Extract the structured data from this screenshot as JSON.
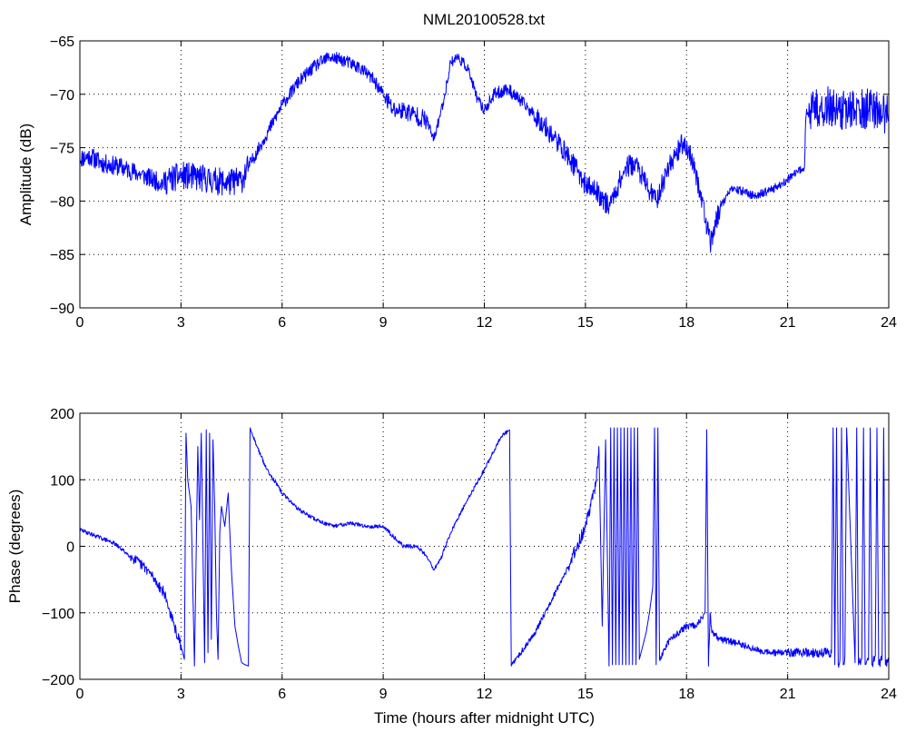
{
  "figure": {
    "title": "NML20100528.txt",
    "line_color": "#0000ff"
  },
  "chart_data": [
    {
      "type": "line",
      "title": "NML20100528.txt",
      "xlabel": "",
      "ylabel": "Amplitude (dB)",
      "xlim": [
        0,
        24
      ],
      "ylim": [
        -90,
        -65
      ],
      "xticks": [
        0,
        3,
        6,
        9,
        12,
        15,
        18,
        21,
        24
      ],
      "yticks": [
        -90,
        -85,
        -80,
        -75,
        -70,
        -65
      ],
      "grid": true,
      "noise": {
        "seed": 11,
        "segments": [
          [
            0,
            2.5,
            0.9
          ],
          [
            2.5,
            5.0,
            1.3
          ],
          [
            5.0,
            9.0,
            0.6
          ],
          [
            9.0,
            10.3,
            0.9
          ],
          [
            10.3,
            12.0,
            0.5
          ],
          [
            12.0,
            13.5,
            0.6
          ],
          [
            13.5,
            19.0,
            1.0
          ],
          [
            19.0,
            21.5,
            0.4
          ],
          [
            21.5,
            24.0,
            1.9
          ]
        ]
      },
      "series": [
        {
          "color": "#0000ff",
          "x": [
            0,
            0.3,
            0.7,
            1.2,
            1.8,
            2.4,
            3.0,
            3.5,
            4.0,
            4.4,
            4.8,
            5.0,
            5.5,
            6.0,
            6.5,
            7.0,
            7.4,
            7.8,
            8.3,
            8.7,
            9.0,
            9.3,
            9.6,
            10.0,
            10.3,
            10.5,
            10.8,
            11.0,
            11.2,
            11.5,
            11.8,
            12.0,
            12.3,
            12.7,
            13.2,
            13.8,
            14.3,
            14.8,
            15.0,
            15.3,
            15.7,
            16.2,
            16.5,
            16.8,
            17.1,
            17.5,
            17.9,
            18.1,
            18.4,
            18.7,
            19.0,
            19.3,
            19.6,
            20.0,
            20.5,
            21.0,
            21.5,
            21.55,
            22.0,
            22.5,
            23.0,
            23.5,
            24.0
          ],
          "y": [
            -76.0,
            -75.8,
            -76.5,
            -76.8,
            -77.5,
            -78.3,
            -77.6,
            -77.8,
            -78.1,
            -78.3,
            -78.0,
            -76.8,
            -74.0,
            -71.0,
            -68.8,
            -67.3,
            -66.5,
            -66.8,
            -67.5,
            -68.6,
            -70.0,
            -71.5,
            -71.5,
            -72.0,
            -72.5,
            -74.3,
            -70.5,
            -67.0,
            -66.5,
            -67.5,
            -70.5,
            -71.5,
            -70.0,
            -69.5,
            -71.0,
            -73.0,
            -75.0,
            -77.3,
            -78.5,
            -79.0,
            -80.5,
            -76.8,
            -76.5,
            -78.5,
            -80.0,
            -76.5,
            -74.5,
            -75.5,
            -79.0,
            -84.0,
            -80.5,
            -79.0,
            -79.0,
            -79.5,
            -79.0,
            -78.0,
            -76.8,
            -72.0,
            -71.0,
            -71.5,
            -71.5,
            -71.3,
            -72.0
          ]
        }
      ]
    },
    {
      "type": "line",
      "title": "",
      "xlabel": "Time (hours after midnight UTC)",
      "ylabel": "Phase (degrees)",
      "xlim": [
        0,
        24
      ],
      "ylim": [
        -200,
        200
      ],
      "xticks": [
        0,
        3,
        6,
        9,
        12,
        15,
        18,
        21,
        24
      ],
      "yticks": [
        -200,
        -100,
        0,
        100,
        200
      ],
      "grid": true,
      "noise": {
        "seed": 29,
        "segments": [
          [
            0,
            1.5,
            3
          ],
          [
            1.5,
            3.0,
            8
          ],
          [
            5.1,
            12.7,
            3
          ],
          [
            12.8,
            14.5,
            4
          ],
          [
            14.5,
            15.5,
            10
          ],
          [
            17.2,
            21.0,
            5
          ],
          [
            21.0,
            24.0,
            7
          ]
        ]
      },
      "series": [
        {
          "color": "#0000ff",
          "x": [
            0,
            0.5,
            1.0,
            1.5,
            2.0,
            2.5,
            2.8,
            3.0,
            3.1,
            3.15,
            3.2,
            3.3,
            3.4,
            3.5,
            3.55,
            3.6,
            3.7,
            3.75,
            3.8,
            3.85,
            3.9,
            3.95,
            4.0,
            4.05,
            4.1,
            4.15,
            4.2,
            4.3,
            4.4,
            4.5,
            4.55,
            4.6,
            4.7,
            4.8,
            4.9,
            5.0,
            5.05,
            5.1,
            5.5,
            6.0,
            6.5,
            7.0,
            7.5,
            8.0,
            8.5,
            9.0,
            9.3,
            9.6,
            10.0,
            10.3,
            10.5,
            10.7,
            11.0,
            11.5,
            12.0,
            12.5,
            12.75,
            12.8,
            13.5,
            14.0,
            14.5,
            15.0,
            15.3,
            15.4,
            15.5,
            15.6,
            15.7,
            15.75,
            15.8,
            15.85,
            15.9,
            15.95,
            16.0,
            16.05,
            16.1,
            16.15,
            16.2,
            16.25,
            16.3,
            16.35,
            16.4,
            16.45,
            16.5,
            16.55,
            16.6,
            16.7,
            16.8,
            16.9,
            17.0,
            17.05,
            17.1,
            17.15,
            17.2,
            17.5,
            18.0,
            18.3,
            18.55,
            18.6,
            18.65,
            18.7,
            18.75,
            19.0,
            19.5,
            20.0,
            20.5,
            21.0,
            21.5,
            22.0,
            22.3,
            22.35,
            22.4,
            22.45,
            22.5,
            22.55,
            22.6,
            22.65,
            22.7,
            22.75,
            23.0,
            23.05,
            23.1,
            23.2,
            23.25,
            23.3,
            23.4,
            23.45,
            23.5,
            23.6,
            23.65,
            23.7,
            23.8,
            23.85,
            23.9,
            24.0
          ],
          "y": [
            25,
            15,
            5,
            -15,
            -35,
            -70,
            -120,
            -150,
            -170,
            170,
            100,
            60,
            -180,
            150,
            40,
            170,
            -175,
            175,
            -160,
            170,
            -140,
            160,
            60,
            -100,
            -170,
            20,
            60,
            30,
            80,
            -40,
            -80,
            -120,
            -150,
            -175,
            -178,
            -180,
            178,
            170,
            120,
            80,
            55,
            40,
            30,
            35,
            30,
            30,
            15,
            0,
            0,
            -15,
            -35,
            -20,
            20,
            70,
            115,
            165,
            175,
            -180,
            -130,
            -80,
            -30,
            30,
            90,
            150,
            -120,
            160,
            -180,
            178,
            -178,
            178,
            -178,
            178,
            -178,
            178,
            -178,
            178,
            -178,
            178,
            -178,
            178,
            -178,
            178,
            -178,
            178,
            -170,
            -150,
            -130,
            -100,
            -60,
            178,
            -178,
            178,
            -170,
            -140,
            -120,
            -120,
            -100,
            175,
            -180,
            -100,
            -130,
            -140,
            -145,
            -155,
            -160,
            -160,
            -160,
            -160,
            -160,
            178,
            -178,
            178,
            -178,
            -170,
            178,
            -178,
            -165,
            178,
            -175,
            178,
            -178,
            -170,
            178,
            -178,
            -170,
            178,
            -178,
            -165,
            178,
            -178,
            -170,
            178,
            -178,
            -170
          ]
        }
      ]
    }
  ]
}
